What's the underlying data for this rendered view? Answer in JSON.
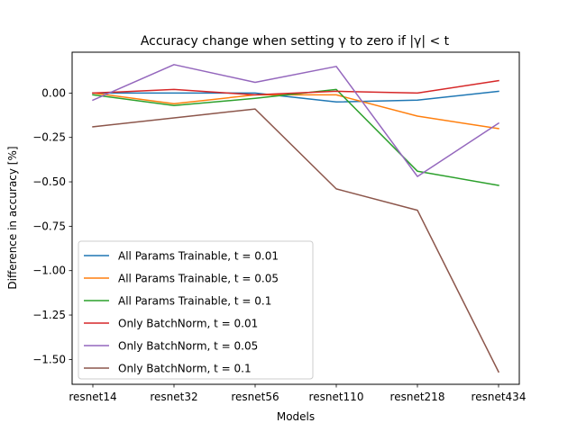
{
  "chart_data": {
    "type": "line",
    "title": "Accuracy change when setting γ to zero if |γ| < t",
    "xlabel": "Models",
    "ylabel": "Difference in accuracy [%]",
    "categories": [
      "resnet14",
      "resnet32",
      "resnet56",
      "resnet110",
      "resnet218",
      "resnet434"
    ],
    "ylim": [
      -1.64,
      0.23
    ],
    "yticks": [
      0.0,
      -0.25,
      -0.5,
      -0.75,
      -1.0,
      -1.25,
      -1.5
    ],
    "ytick_labels": [
      "0.00",
      "−0.25",
      "−0.50",
      "−0.75",
      "−1.00",
      "−1.25",
      "−1.50"
    ],
    "grid": false,
    "legend_position": "lower-left",
    "series": [
      {
        "name": "All Params Trainable, t = 0.01",
        "color": "#1f77b4",
        "values": [
          0.0,
          0.0,
          0.0,
          -0.05,
          -0.04,
          0.01
        ]
      },
      {
        "name": "All Params Trainable, t = 0.05",
        "color": "#ff7f0e",
        "values": [
          0.0,
          -0.06,
          -0.01,
          -0.01,
          -0.13,
          -0.2
        ]
      },
      {
        "name": "All Params Trainable, t = 0.1",
        "color": "#2ca02c",
        "values": [
          -0.01,
          -0.07,
          -0.03,
          0.02,
          -0.44,
          -0.52
        ]
      },
      {
        "name": "Only BatchNorm, t = 0.01",
        "color": "#d62728",
        "values": [
          0.0,
          0.02,
          -0.01,
          0.01,
          0.0,
          0.07
        ]
      },
      {
        "name": "Only BatchNorm, t = 0.05",
        "color": "#9467bd",
        "values": [
          -0.04,
          0.16,
          0.06,
          0.15,
          -0.47,
          -0.17
        ]
      },
      {
        "name": "Only BatchNorm, t = 0.1",
        "color": "#8c564b",
        "values": [
          -0.19,
          -0.14,
          -0.09,
          -0.54,
          -0.66,
          -1.57
        ]
      }
    ]
  }
}
